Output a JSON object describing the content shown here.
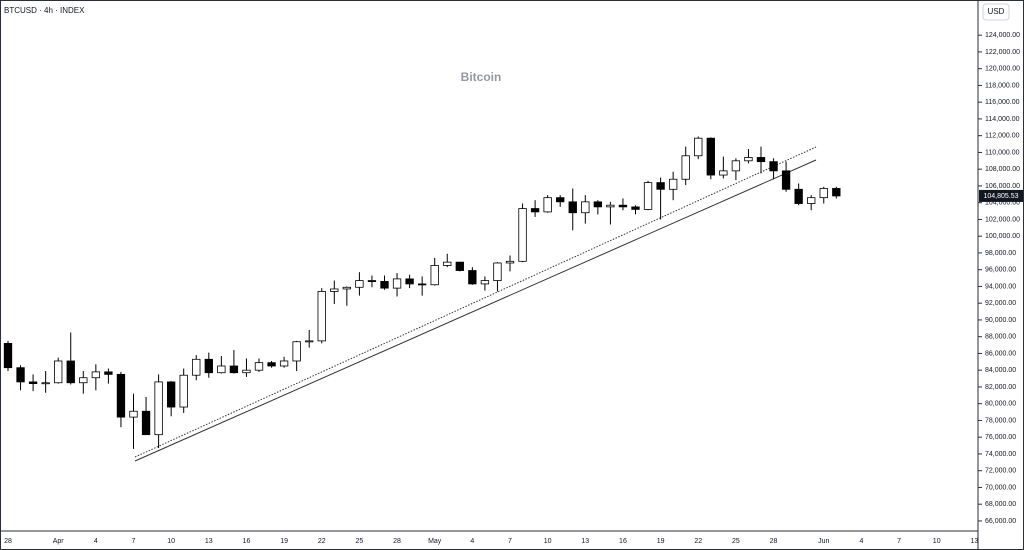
{
  "chart_data": {
    "type": "candlestick",
    "symbol_label": "BTCUSD · 4h · INDEX",
    "title": "Bitcoin",
    "currency": "USD",
    "last_price_label": "104,805.53",
    "up_color": "#ffffff",
    "down_color": "#000000",
    "wick_color": "#000000",
    "categories": [
      "28",
      null,
      null,
      null,
      "Apr",
      null,
      null,
      "4",
      null,
      null,
      "7",
      null,
      null,
      "10",
      null,
      null,
      "13",
      null,
      null,
      "16",
      null,
      null,
      "19",
      null,
      null,
      "22",
      null,
      null,
      "25",
      null,
      null,
      "28",
      null,
      null,
      "May",
      null,
      null,
      "4",
      null,
      null,
      "7",
      null,
      null,
      "10",
      null,
      null,
      "13",
      null,
      null,
      "16",
      null,
      null,
      "19",
      null,
      null,
      "22",
      null,
      null,
      "25",
      null,
      null,
      "28",
      null,
      null,
      null,
      "Jun",
      null,
      null,
      "4",
      null,
      null,
      "7",
      null,
      null,
      "10",
      null,
      null,
      "13"
    ],
    "open": [
      87200,
      84300,
      82600,
      82400,
      82500,
      85100,
      82500,
      83100,
      83800,
      83500,
      78400,
      79100,
      76300,
      82600,
      79600,
      83400,
      85300,
      83700,
      84500,
      83700,
      84000,
      84900,
      84500,
      85100,
      87400,
      87500,
      93400,
      93700,
      93900,
      94700,
      94600,
      93800,
      94900,
      94300,
      94200,
      96500,
      96900,
      95900,
      94300,
      94700,
      96800,
      97000,
      103300,
      102900,
      104600,
      104100,
      102800,
      104100,
      103500,
      103700,
      103500,
      103200,
      106400,
      105600,
      106800,
      109600,
      111700,
      107300,
      107800,
      109000,
      109400,
      108900,
      107800,
      105600,
      103900,
      104600,
      105700,
      null,
      null,
      null,
      null,
      null,
      null,
      null,
      null,
      null,
      null,
      null
    ],
    "high": [
      87500,
      84600,
      83500,
      83900,
      85500,
      88500,
      83900,
      84700,
      84200,
      83800,
      81200,
      80800,
      83500,
      82700,
      84200,
      85800,
      86100,
      85700,
      86400,
      85400,
      85400,
      85100,
      85600,
      87500,
      88800,
      93800,
      94700,
      94000,
      95700,
      95300,
      95300,
      95600,
      95400,
      95200,
      97400,
      97900,
      96900,
      96300,
      95200,
      96900,
      97700,
      103900,
      104300,
      104900,
      104900,
      105700,
      104900,
      104300,
      104100,
      104500,
      103700,
      106600,
      107000,
      107700,
      110700,
      111900,
      111800,
      109500,
      109300,
      110400,
      110700,
      109300,
      108900,
      106300,
      104900,
      105900,
      105900,
      null,
      null,
      null,
      null,
      null,
      null,
      null,
      null,
      null,
      null,
      null
    ],
    "low": [
      83900,
      81600,
      81500,
      81300,
      82400,
      82300,
      81200,
      81600,
      82400,
      77200,
      74600,
      76300,
      74700,
      78500,
      78900,
      82800,
      83100,
      83600,
      83600,
      83200,
      83800,
      84300,
      84300,
      83900,
      86700,
      87200,
      91900,
      91700,
      92900,
      93900,
      93600,
      92800,
      93800,
      92900,
      94100,
      96300,
      95800,
      94200,
      93500,
      93400,
      95800,
      96900,
      102300,
      102800,
      103500,
      100700,
      101500,
      102600,
      101400,
      103100,
      102600,
      103100,
      102000,
      104300,
      106100,
      109200,
      106800,
      106900,
      106700,
      108700,
      107500,
      106800,
      105300,
      103700,
      103100,
      103900,
      104500,
      null,
      null,
      null,
      null,
      null,
      null,
      null,
      null,
      null,
      null,
      null
    ],
    "close": [
      84300,
      82600,
      82400,
      82500,
      85100,
      82500,
      83100,
      83800,
      83500,
      78400,
      79100,
      76300,
      82600,
      79600,
      83400,
      85300,
      83700,
      84500,
      83700,
      84000,
      84900,
      84500,
      85100,
      87400,
      87500,
      93400,
      93700,
      93900,
      94700,
      94600,
      93800,
      94900,
      94300,
      94200,
      96500,
      96900,
      95900,
      94300,
      94700,
      96800,
      97000,
      103300,
      102900,
      104600,
      104100,
      102800,
      104100,
      103500,
      103700,
      103500,
      103200,
      106400,
      105600,
      106800,
      109600,
      111700,
      107300,
      107800,
      109000,
      109400,
      108900,
      107800,
      105600,
      103900,
      104600,
      105700,
      104805.53,
      null,
      null,
      null,
      null,
      null,
      null,
      null,
      null,
      null,
      null,
      null
    ],
    "ylim": [
      64800,
      128200
    ],
    "yticks": [
      {
        "value": 66000,
        "label": "66,000.00"
      },
      {
        "value": 68000,
        "label": "68,000.00"
      },
      {
        "value": 70000,
        "label": "70,000.00"
      },
      {
        "value": 72000,
        "label": "72,000.00"
      },
      {
        "value": 74000,
        "label": "74,000.00"
      },
      {
        "value": 76000,
        "label": "76,000.00"
      },
      {
        "value": 78000,
        "label": "78,000.00"
      },
      {
        "value": 80000,
        "label": "80,000.00"
      },
      {
        "value": 82000,
        "label": "82,000.00"
      },
      {
        "value": 84000,
        "label": "84,000.00"
      },
      {
        "value": 86000,
        "label": "86,000.00"
      },
      {
        "value": 88000,
        "label": "88,000.00"
      },
      {
        "value": 90000,
        "label": "90,000.00"
      },
      {
        "value": 92000,
        "label": "92,000.00"
      },
      {
        "value": 94000,
        "label": "94,000.00"
      },
      {
        "value": 96000,
        "label": "96,000.00"
      },
      {
        "value": 98000,
        "label": "98,000.00"
      },
      {
        "value": 100000,
        "label": "100,000.00"
      },
      {
        "value": 102000,
        "label": "102,000.00"
      },
      {
        "value": 104000,
        "label": "104,000.00"
      },
      {
        "value": 106000,
        "label": "106,000.00"
      },
      {
        "value": 108000,
        "label": "108,000.00"
      },
      {
        "value": 110000,
        "label": "110,000.00"
      },
      {
        "value": 112000,
        "label": "112,000.00"
      },
      {
        "value": 114000,
        "label": "114,000.00"
      },
      {
        "value": 116000,
        "label": "116,000.00"
      },
      {
        "value": 118000,
        "label": "118,000.00"
      },
      {
        "value": 120000,
        "label": "120,000.00"
      },
      {
        "value": 122000,
        "label": "122,000.00"
      },
      {
        "value": 124000,
        "label": "124,000.00"
      }
    ],
    "grid": false
  }
}
